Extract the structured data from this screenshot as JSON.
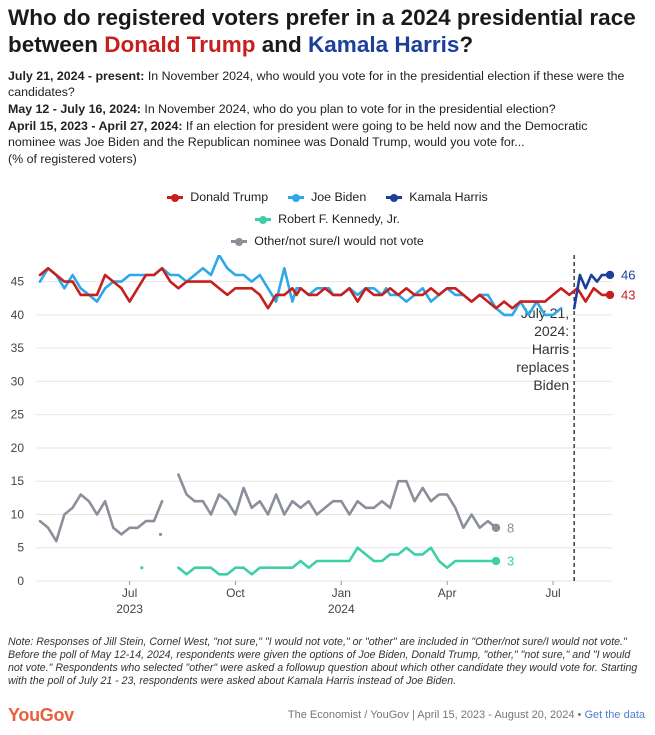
{
  "title": {
    "part1": "Who do registered voters prefer in a 2024 presidential race between ",
    "trump": "Donald Trump",
    "and": " and ",
    "harris": "Kamala Harris",
    "end": "?"
  },
  "questions": [
    {
      "date": "July 21, 2024 - present:",
      "text": " In November 2024, who would you vote for in the presidential election if these were the candidates?"
    },
    {
      "date": "May 12 - July 16, 2024:",
      "text": " In November 2024, who do you plan to vote for in the presidential election?"
    },
    {
      "date": "April 15, 2023 - April 27, 2024:",
      "text": " If an election for president were going to be held now and the Democratic nominee was Joe Biden and the Republican nominee was Donald Trump, would you vote for..."
    }
  ],
  "unit_note": "(% of registered voters)",
  "legend": [
    {
      "label": "Donald Trump",
      "color": "#c81e1e"
    },
    {
      "label": "Joe Biden",
      "color": "#2ea8e6"
    },
    {
      "label": "Kamala Harris",
      "color": "#1c3f9c"
    },
    {
      "label": "Robert F. Kennedy, Jr.",
      "color": "#3fcfa8"
    },
    {
      "label": "Other/not sure/I would not vote",
      "color": "#8a8f99"
    }
  ],
  "chart_data": {
    "type": "line",
    "x_unit": "weeks since April 15, 2023",
    "xlim": [
      0,
      70
    ],
    "ylim": [
      0,
      49
    ],
    "yticks": [
      0,
      5,
      10,
      15,
      20,
      25,
      30,
      35,
      40,
      45
    ],
    "xticks": [
      {
        "x": 11,
        "label": "Jul",
        "year": "2023"
      },
      {
        "x": 24,
        "label": "Oct",
        "year": ""
      },
      {
        "x": 37,
        "label": "Jan",
        "year": "2024"
      },
      {
        "x": 50,
        "label": "Apr",
        "year": ""
      },
      {
        "x": 63,
        "label": "Jul",
        "year": ""
      }
    ],
    "event_line": {
      "x": 65.6,
      "label": [
        "July 21,",
        "2024:",
        "Harris",
        "replaces",
        "Biden"
      ]
    },
    "series": [
      {
        "name": "Joe Biden",
        "color": "#2ea8e6",
        "end_label": "",
        "points": [
          [
            0,
            45
          ],
          [
            1,
            47
          ],
          [
            2,
            46
          ],
          [
            3,
            44
          ],
          [
            4,
            46
          ],
          [
            5,
            44
          ],
          [
            6,
            43
          ],
          [
            7,
            42
          ],
          [
            8,
            44
          ],
          [
            9,
            45
          ],
          [
            10,
            45
          ],
          [
            11,
            46
          ],
          [
            12,
            46
          ],
          [
            13,
            46
          ],
          [
            14,
            46
          ],
          [
            15,
            47
          ],
          [
            16,
            46
          ],
          [
            17,
            46
          ],
          [
            18,
            45
          ],
          [
            19,
            46
          ],
          [
            20,
            47
          ],
          [
            21,
            46
          ],
          [
            22,
            49
          ],
          [
            23,
            47
          ],
          [
            24,
            46
          ],
          [
            25,
            46
          ],
          [
            26,
            45
          ],
          [
            27,
            46
          ],
          [
            28,
            44
          ],
          [
            29,
            42
          ],
          [
            30,
            47
          ],
          [
            31,
            42
          ],
          [
            31.5,
            44
          ],
          [
            32,
            44
          ],
          [
            33,
            43
          ],
          [
            34,
            44
          ],
          [
            35,
            44
          ],
          [
            35.5,
            44
          ],
          [
            36,
            43
          ],
          [
            37,
            43
          ],
          [
            38,
            44
          ],
          [
            39,
            43
          ],
          [
            40,
            44
          ],
          [
            41,
            44
          ],
          [
            42,
            43
          ],
          [
            42.5,
            44
          ],
          [
            43,
            43
          ],
          [
            44,
            43
          ],
          [
            45,
            42
          ],
          [
            46,
            43
          ],
          [
            47,
            44
          ],
          [
            48,
            42
          ],
          [
            49,
            43
          ],
          [
            50,
            44
          ],
          [
            51,
            43
          ],
          [
            52,
            43
          ],
          [
            53,
            42
          ],
          [
            54,
            43
          ],
          [
            55,
            43
          ],
          [
            56,
            41
          ],
          [
            57,
            40
          ],
          [
            58,
            40
          ],
          [
            59,
            42
          ],
          [
            60,
            40
          ],
          [
            61,
            42
          ],
          [
            62,
            40
          ],
          [
            63,
            40
          ],
          [
            64,
            41
          ]
        ]
      },
      {
        "name": "Donald Trump",
        "color": "#c81e1e",
        "end_label": "43",
        "points": [
          [
            0,
            46
          ],
          [
            1,
            47
          ],
          [
            2,
            46
          ],
          [
            3,
            45
          ],
          [
            4,
            45
          ],
          [
            5,
            43
          ],
          [
            6,
            43
          ],
          [
            7,
            43
          ],
          [
            8,
            46
          ],
          [
            9,
            45
          ],
          [
            10,
            44
          ],
          [
            11,
            42
          ],
          [
            12,
            44
          ],
          [
            13,
            46
          ],
          [
            14,
            46
          ],
          [
            15,
            47
          ],
          [
            16,
            45
          ],
          [
            17,
            44
          ],
          [
            18,
            45
          ],
          [
            19,
            45
          ],
          [
            20,
            45
          ],
          [
            21,
            45
          ],
          [
            22,
            44
          ],
          [
            23,
            43
          ],
          [
            24,
            44
          ],
          [
            25,
            44
          ],
          [
            26,
            44
          ],
          [
            27,
            43
          ],
          [
            28,
            41
          ],
          [
            29,
            43
          ],
          [
            30,
            43
          ],
          [
            31,
            44
          ],
          [
            31.5,
            43
          ],
          [
            32,
            44
          ],
          [
            33,
            43
          ],
          [
            34,
            43
          ],
          [
            35,
            44
          ],
          [
            36,
            43
          ],
          [
            37,
            43
          ],
          [
            38,
            44
          ],
          [
            39,
            42
          ],
          [
            40,
            44
          ],
          [
            41,
            43
          ],
          [
            42,
            43
          ],
          [
            43,
            44
          ],
          [
            44,
            43
          ],
          [
            45,
            44
          ],
          [
            46,
            43
          ],
          [
            47,
            43
          ],
          [
            48,
            44
          ],
          [
            49,
            43
          ],
          [
            50,
            44
          ],
          [
            51,
            44
          ],
          [
            52,
            43
          ],
          [
            53,
            42
          ],
          [
            54,
            43
          ],
          [
            55,
            42
          ],
          [
            56,
            41
          ],
          [
            57,
            42
          ],
          [
            58,
            41
          ],
          [
            59,
            42
          ],
          [
            60,
            42
          ],
          [
            61,
            42
          ],
          [
            62,
            42
          ],
          [
            63,
            43
          ],
          [
            64,
            44
          ],
          [
            65,
            43
          ],
          [
            66,
            44
          ],
          [
            67,
            42
          ],
          [
            68,
            44
          ],
          [
            69,
            43
          ],
          [
            70,
            43
          ]
        ]
      },
      {
        "name": "Kamala Harris",
        "color": "#1c3f9c",
        "end_label": "46",
        "points": [
          [
            65.6,
            41
          ],
          [
            66.3,
            46
          ],
          [
            67,
            44
          ],
          [
            67.7,
            46
          ],
          [
            68.4,
            45
          ],
          [
            69,
            46
          ],
          [
            70,
            46
          ]
        ]
      },
      {
        "name": "Other/not sure/I would not vote",
        "color": "#8a8f99",
        "end_label": "8",
        "points": [
          [
            0,
            9
          ],
          [
            1,
            8
          ],
          [
            2,
            6
          ],
          [
            3,
            10
          ],
          [
            4,
            11
          ],
          [
            5,
            13
          ],
          [
            6,
            12
          ],
          [
            7,
            10
          ],
          [
            8,
            12
          ],
          [
            9,
            8
          ],
          [
            10,
            7
          ],
          [
            11,
            8
          ],
          [
            12,
            8
          ],
          [
            13,
            9
          ],
          [
            14,
            9
          ],
          [
            15,
            12
          ],
          [
            16,
            7
          ],
          [
            17,
            16
          ],
          [
            18,
            13
          ],
          [
            19,
            12
          ],
          [
            20,
            12
          ],
          [
            21,
            10
          ],
          [
            22,
            13
          ],
          [
            23,
            12
          ],
          [
            24,
            10
          ],
          [
            25,
            14
          ],
          [
            26,
            11
          ],
          [
            27,
            12
          ],
          [
            28,
            10
          ],
          [
            29,
            13
          ],
          [
            30,
            10
          ],
          [
            31,
            12
          ],
          [
            32,
            11
          ],
          [
            33,
            12
          ],
          [
            34,
            10
          ],
          [
            35,
            11
          ],
          [
            36,
            12
          ],
          [
            37,
            12
          ],
          [
            38,
            10
          ],
          [
            39,
            12
          ],
          [
            40,
            11
          ],
          [
            41,
            11
          ],
          [
            42,
            12
          ],
          [
            43,
            11
          ],
          [
            44,
            15
          ],
          [
            45,
            15
          ],
          [
            46,
            12
          ],
          [
            47,
            14
          ],
          [
            48,
            12
          ],
          [
            49,
            13
          ],
          [
            50,
            13
          ],
          [
            51,
            11
          ],
          [
            52,
            8
          ],
          [
            53,
            10
          ],
          [
            54,
            8
          ],
          [
            55,
            9
          ],
          [
            56,
            8
          ]
        ],
        "gaps_after_x": [
          15,
          16
        ]
      },
      {
        "name": "Robert F. Kennedy, Jr.",
        "color": "#3fcfa8",
        "end_label": "3",
        "points": [
          [
            17,
            2
          ],
          [
            18,
            1
          ],
          [
            19,
            2
          ],
          [
            20,
            2
          ],
          [
            21,
            2
          ],
          [
            22,
            1
          ],
          [
            23,
            1
          ],
          [
            24,
            2
          ],
          [
            25,
            2
          ],
          [
            26,
            1
          ],
          [
            27,
            2
          ],
          [
            28,
            2
          ],
          [
            29,
            2
          ],
          [
            30,
            2
          ],
          [
            31,
            2
          ],
          [
            32,
            3
          ],
          [
            33,
            2
          ],
          [
            34,
            3
          ],
          [
            35,
            3
          ],
          [
            36,
            3
          ],
          [
            37,
            3
          ],
          [
            38,
            3
          ],
          [
            39,
            5
          ],
          [
            40,
            4
          ],
          [
            41,
            3
          ],
          [
            42,
            3
          ],
          [
            43,
            4
          ],
          [
            44,
            4
          ],
          [
            45,
            5
          ],
          [
            46,
            4
          ],
          [
            47,
            4
          ],
          [
            48,
            5
          ],
          [
            49,
            3
          ],
          [
            50,
            2
          ],
          [
            51,
            3
          ],
          [
            52,
            3
          ],
          [
            53,
            3
          ],
          [
            54,
            3
          ],
          [
            55,
            3
          ],
          [
            56,
            3
          ]
        ]
      }
    ],
    "isolated_points": [
      {
        "series": "Robert F. Kennedy, Jr.",
        "x": 12.5,
        "y": 2
      },
      {
        "series": "Other/not sure/I would not vote",
        "x": 14.8,
        "y": 7
      }
    ]
  },
  "note": "Note: Responses of Jill Stein, Cornel West, \"not sure,\" \"I would not vote,\" or \"other\" are included in \"Other/not sure/I would not vote.\" Before the poll of May 12-14, 2024, respondents were given the options of Joe Biden, Donald Trump, \"other,\" \"not sure,\" and \"I would not vote.\" Respondents who selected \"other\" were asked a followup question about which other candidate they would vote for. Starting with the poll of July 21 - 23, respondents were asked about Kamala Harris instead of Joe Biden.",
  "footer": {
    "logo": "YouGov",
    "source": "The Economist / YouGov | April 15, 2023 - August 20, 2024",
    "bullet": "•",
    "link": "Get the data"
  }
}
